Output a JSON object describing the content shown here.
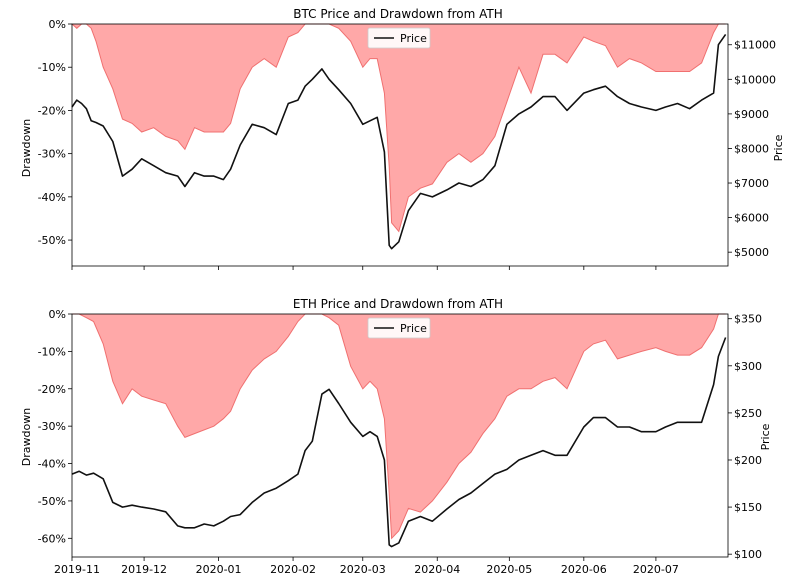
{
  "chart_data": [
    {
      "type": "area",
      "title": "BTC Price and Drawdown from ATH",
      "ylabel_left": "Drawdown",
      "ylabel_right": "Price",
      "legend": {
        "entries": [
          "Price"
        ],
        "placement": "top-center"
      },
      "xlim": [
        "2019-11-01",
        "2020-07-31"
      ],
      "left_ylim": [
        -56,
        0
      ],
      "right_ylim": [
        4600,
        11600
      ],
      "left_ticks": [
        0,
        -10,
        -20,
        -30,
        -40,
        -50
      ],
      "left_tick_labels": [
        "0%",
        "-10%",
        "-20%",
        "-30%",
        "-40%",
        "-50%"
      ],
      "right_ticks": [
        5000,
        6000,
        7000,
        8000,
        9000,
        10000,
        11000
      ],
      "right_tick_labels": [
        "$5000",
        "$6000",
        "$7000",
        "$8000",
        "$9000",
        "$10000",
        "$11000"
      ],
      "drawdown_color": "#ff9999",
      "drawdown_edge_color": "#f07070",
      "price_color": "#111111",
      "drawdown": {
        "x": [
          "2019-11-01",
          "2019-11-03",
          "2019-11-05",
          "2019-11-07",
          "2019-11-09",
          "2019-11-11",
          "2019-11-14",
          "2019-11-18",
          "2019-11-22",
          "2019-11-26",
          "2019-11-30",
          "2019-12-05",
          "2019-12-10",
          "2019-12-15",
          "2019-12-18",
          "2019-12-22",
          "2019-12-26",
          "2019-12-30",
          "2020-01-03",
          "2020-01-06",
          "2020-01-10",
          "2020-01-15",
          "2020-01-20",
          "2020-01-25",
          "2020-01-30",
          "2020-02-03",
          "2020-02-06",
          "2020-02-09",
          "2020-02-13",
          "2020-02-16",
          "2020-02-20",
          "2020-02-25",
          "2020-03-01",
          "2020-03-04",
          "2020-03-07",
          "2020-03-10",
          "2020-03-12",
          "2020-03-13",
          "2020-03-16",
          "2020-03-20",
          "2020-03-25",
          "2020-03-30",
          "2020-04-05",
          "2020-04-10",
          "2020-04-15",
          "2020-04-20",
          "2020-04-25",
          "2020-04-30",
          "2020-05-05",
          "2020-05-10",
          "2020-05-15",
          "2020-05-20",
          "2020-05-25",
          "2020-06-01",
          "2020-06-05",
          "2020-06-10",
          "2020-06-15",
          "2020-06-20",
          "2020-06-25",
          "2020-07-01",
          "2020-07-05",
          "2020-07-10",
          "2020-07-15",
          "2020-07-20",
          "2020-07-25",
          "2020-07-27",
          "2020-07-30"
        ],
        "y": [
          0,
          -1,
          0,
          0,
          -1,
          -4,
          -10,
          -15,
          -22,
          -23,
          -25,
          -24,
          -26,
          -27,
          -29,
          -24,
          -25,
          -25,
          -25,
          -23,
          -15,
          -10,
          -8,
          -10,
          -3,
          -2,
          0,
          0,
          0,
          0,
          -1,
          -4,
          -10,
          -8,
          -8,
          -16,
          -33,
          -46,
          -48,
          -40,
          -38,
          -37,
          -32,
          -30,
          -32,
          -30,
          -26,
          -18,
          -10,
          -16,
          -7,
          -7,
          -9,
          -3,
          -4,
          -5,
          -10,
          -8,
          -9,
          -11,
          -11,
          -11,
          -11,
          -9,
          -2,
          0,
          0
        ]
      },
      "price": {
        "x": [
          "2019-11-01",
          "2019-11-03",
          "2019-11-05",
          "2019-11-07",
          "2019-11-09",
          "2019-11-11",
          "2019-11-14",
          "2019-11-18",
          "2019-11-22",
          "2019-11-26",
          "2019-11-30",
          "2019-12-05",
          "2019-12-10",
          "2019-12-15",
          "2019-12-18",
          "2019-12-22",
          "2019-12-26",
          "2019-12-30",
          "2020-01-03",
          "2020-01-06",
          "2020-01-10",
          "2020-01-15",
          "2020-01-20",
          "2020-01-25",
          "2020-01-30",
          "2020-02-03",
          "2020-02-06",
          "2020-02-09",
          "2020-02-13",
          "2020-02-16",
          "2020-02-20",
          "2020-02-25",
          "2020-03-01",
          "2020-03-04",
          "2020-03-07",
          "2020-03-10",
          "2020-03-12",
          "2020-03-13",
          "2020-03-16",
          "2020-03-20",
          "2020-03-25",
          "2020-03-30",
          "2020-04-05",
          "2020-04-10",
          "2020-04-15",
          "2020-04-20",
          "2020-04-25",
          "2020-04-30",
          "2020-05-05",
          "2020-05-10",
          "2020-05-15",
          "2020-05-20",
          "2020-05-25",
          "2020-06-01",
          "2020-06-05",
          "2020-06-10",
          "2020-06-15",
          "2020-06-20",
          "2020-06-25",
          "2020-07-01",
          "2020-07-05",
          "2020-07-10",
          "2020-07-15",
          "2020-07-20",
          "2020-07-25",
          "2020-07-27",
          "2020-07-30"
        ],
        "y": [
          9200,
          9400,
          9300,
          9150,
          8800,
          8750,
          8650,
          8200,
          7200,
          7400,
          7700,
          7500,
          7300,
          7200,
          6900,
          7300,
          7200,
          7200,
          7100,
          7400,
          8100,
          8700,
          8600,
          8400,
          9300,
          9400,
          9800,
          10000,
          10300,
          10000,
          9700,
          9300,
          8700,
          8800,
          8900,
          7900,
          5200,
          5100,
          5300,
          6200,
          6700,
          6600,
          6800,
          7000,
          6900,
          7100,
          7500,
          8700,
          9000,
          9200,
          9500,
          9500,
          9100,
          9600,
          9700,
          9800,
          9500,
          9300,
          9200,
          9100,
          9200,
          9300,
          9150,
          9400,
          9600,
          11000,
          11300
        ]
      }
    },
    {
      "type": "area",
      "title": "ETH Price and Drawdown from ATH",
      "ylabel_left": "Drawdown",
      "ylabel_right": "Price",
      "legend": {
        "entries": [
          "Price"
        ],
        "placement": "top-center"
      },
      "xlim": [
        "2019-11-01",
        "2020-07-31"
      ],
      "left_ylim": [
        -65,
        0
      ],
      "right_ylim": [
        97,
        355
      ],
      "left_ticks": [
        0,
        -10,
        -20,
        -30,
        -40,
        -50,
        -60
      ],
      "left_tick_labels": [
        "0%",
        "-10%",
        "-20%",
        "-30%",
        "-40%",
        "-50%",
        "-60%"
      ],
      "right_ticks": [
        100,
        150,
        200,
        250,
        300,
        350
      ],
      "right_tick_labels": [
        "$100",
        "$150",
        "$200",
        "$250",
        "$300",
        "$350"
      ],
      "x_ticks": [
        "2019-11-01",
        "2019-12-01",
        "2020-01-01",
        "2020-02-01",
        "2020-03-01",
        "2020-04-01",
        "2020-05-01",
        "2020-06-01",
        "2020-07-01"
      ],
      "x_tick_labels": [
        "2019-11",
        "2019-12",
        "2020-01",
        "2020-02",
        "2020-03",
        "2020-04",
        "2020-05",
        "2020-06",
        "2020-07"
      ],
      "drawdown_color": "#ff9999",
      "drawdown_edge_color": "#f07070",
      "price_color": "#111111",
      "drawdown": {
        "x": [
          "2019-11-01",
          "2019-11-04",
          "2019-11-07",
          "2019-11-10",
          "2019-11-14",
          "2019-11-18",
          "2019-11-22",
          "2019-11-26",
          "2019-11-30",
          "2019-12-05",
          "2019-12-10",
          "2019-12-15",
          "2019-12-18",
          "2019-12-22",
          "2019-12-26",
          "2019-12-30",
          "2020-01-03",
          "2020-01-06",
          "2020-01-10",
          "2020-01-15",
          "2020-01-20",
          "2020-01-25",
          "2020-01-30",
          "2020-02-03",
          "2020-02-06",
          "2020-02-09",
          "2020-02-13",
          "2020-02-16",
          "2020-02-20",
          "2020-02-25",
          "2020-03-01",
          "2020-03-04",
          "2020-03-07",
          "2020-03-10",
          "2020-03-12",
          "2020-03-13",
          "2020-03-16",
          "2020-03-20",
          "2020-03-25",
          "2020-03-30",
          "2020-04-05",
          "2020-04-10",
          "2020-04-15",
          "2020-04-20",
          "2020-04-25",
          "2020-04-30",
          "2020-05-05",
          "2020-05-10",
          "2020-05-15",
          "2020-05-20",
          "2020-05-25",
          "2020-06-01",
          "2020-06-05",
          "2020-06-10",
          "2020-06-15",
          "2020-06-20",
          "2020-06-25",
          "2020-07-01",
          "2020-07-05",
          "2020-07-10",
          "2020-07-15",
          "2020-07-20",
          "2020-07-25",
          "2020-07-27",
          "2020-07-30"
        ],
        "y": [
          0,
          0,
          -1,
          -2,
          -8,
          -18,
          -24,
          -20,
          -22,
          -23,
          -24,
          -30,
          -33,
          -32,
          -31,
          -30,
          -28,
          -26,
          -20,
          -15,
          -12,
          -10,
          -6,
          -2,
          0,
          0,
          0,
          -1,
          -3,
          -14,
          -20,
          -18,
          -20,
          -28,
          -48,
          -60,
          -58,
          -52,
          -53,
          -50,
          -45,
          -40,
          -37,
          -32,
          -28,
          -22,
          -20,
          -20,
          -18,
          -17,
          -20,
          -10,
          -8,
          -7,
          -12,
          -11,
          -10,
          -9,
          -10,
          -11,
          -11,
          -9,
          -4,
          0,
          0
        ]
      },
      "price": {
        "x": [
          "2019-11-01",
          "2019-11-04",
          "2019-11-07",
          "2019-11-10",
          "2019-11-14",
          "2019-11-18",
          "2019-11-22",
          "2019-11-26",
          "2019-11-30",
          "2019-12-05",
          "2019-12-10",
          "2019-12-15",
          "2019-12-18",
          "2019-12-22",
          "2019-12-26",
          "2019-12-30",
          "2020-01-03",
          "2020-01-06",
          "2020-01-10",
          "2020-01-15",
          "2020-01-20",
          "2020-01-25",
          "2020-01-30",
          "2020-02-03",
          "2020-02-06",
          "2020-02-09",
          "2020-02-13",
          "2020-02-16",
          "2020-02-20",
          "2020-02-25",
          "2020-03-01",
          "2020-03-04",
          "2020-03-07",
          "2020-03-10",
          "2020-03-12",
          "2020-03-13",
          "2020-03-16",
          "2020-03-20",
          "2020-03-25",
          "2020-03-30",
          "2020-04-05",
          "2020-04-10",
          "2020-04-15",
          "2020-04-20",
          "2020-04-25",
          "2020-04-30",
          "2020-05-05",
          "2020-05-10",
          "2020-05-15",
          "2020-05-20",
          "2020-05-25",
          "2020-06-01",
          "2020-06-05",
          "2020-06-10",
          "2020-06-15",
          "2020-06-20",
          "2020-06-25",
          "2020-07-01",
          "2020-07-05",
          "2020-07-10",
          "2020-07-15",
          "2020-07-20",
          "2020-07-25",
          "2020-07-27",
          "2020-07-30"
        ],
        "y": [
          185,
          188,
          184,
          186,
          180,
          155,
          150,
          152,
          150,
          148,
          145,
          130,
          128,
          128,
          132,
          130,
          135,
          140,
          142,
          155,
          165,
          170,
          178,
          185,
          210,
          220,
          270,
          275,
          260,
          240,
          225,
          230,
          225,
          200,
          110,
          108,
          112,
          135,
          140,
          135,
          148,
          158,
          165,
          175,
          185,
          190,
          200,
          205,
          210,
          205,
          205,
          235,
          245,
          245,
          235,
          235,
          230,
          230,
          235,
          240,
          240,
          240,
          280,
          310,
          330
        ]
      }
    }
  ]
}
